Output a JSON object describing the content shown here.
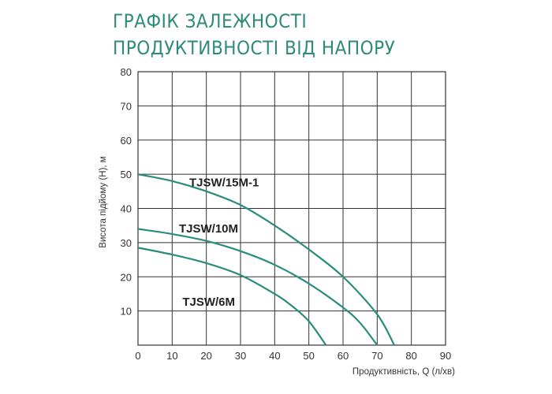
{
  "title_lines": [
    "ГРАФІК ЗАЛЕЖНОСТІ",
    "ПРОДУКТИВНОСТІ ВІД НАПОРУ"
  ],
  "colors": {
    "title": "#2e8b7a",
    "curve": "#2a8c7c",
    "grid": "#333333"
  },
  "chart_data": {
    "type": "line",
    "title": "ГРАФІК ЗАЛЕЖНОСТІ ПРОДУКТИВНОСТІ ВІД НАПОРУ",
    "xlabel": "Продуктивність, Q (л/хв)",
    "ylabel": "Висота підйому (H), м",
    "xlim": [
      0,
      90
    ],
    "ylim": [
      0,
      80
    ],
    "xticks": [
      0,
      10,
      20,
      30,
      40,
      50,
      60,
      70,
      80,
      90
    ],
    "yticks": [
      10,
      20,
      30,
      40,
      50,
      60,
      70,
      80
    ],
    "grid": true,
    "series": [
      {
        "name": "TJSW/15M-1",
        "x": [
          0,
          10,
          20,
          30,
          40,
          50,
          60,
          70,
          75
        ],
        "y": [
          50,
          48,
          45,
          41,
          35,
          28,
          20,
          9,
          0
        ]
      },
      {
        "name": "TJSW/10M",
        "x": [
          0,
          10,
          20,
          30,
          40,
          50,
          60,
          65,
          70
        ],
        "y": [
          34,
          32.5,
          30.5,
          27.5,
          23.5,
          18,
          11,
          6.5,
          0
        ]
      },
      {
        "name": "TJSW/6M",
        "x": [
          0,
          10,
          20,
          30,
          40,
          45,
          50,
          55
        ],
        "y": [
          28.5,
          26.5,
          24,
          20.5,
          15,
          11.5,
          7,
          0
        ]
      }
    ]
  }
}
